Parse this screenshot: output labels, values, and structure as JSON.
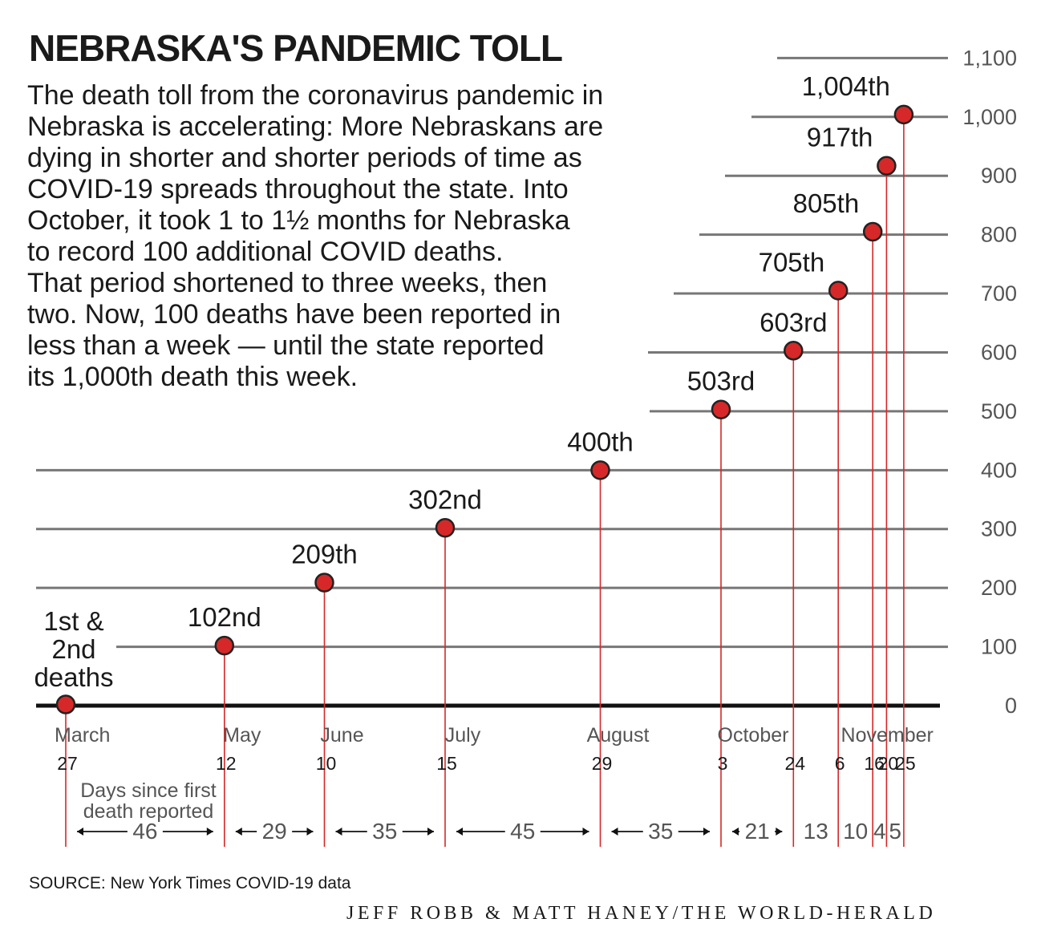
{
  "title": "NEBRASKA'S PANDEMIC TOLL",
  "intro_lines": [
    "The death toll from the coronavirus pandemic in",
    "Nebraska is accelerating: More Nebraskans are",
    "dying in shorter and shorter periods of time as",
    "COVID-19 spreads throughout the state. Into",
    "October, it took 1 to 1½ months for Nebraska",
    "to record 100 additional COVID deaths.",
    "That period shortened to three weeks, then",
    "two. Now, 100 deaths have been reported in",
    "less than a week — until the state reported",
    "its 1,000th death this week."
  ],
  "source": "SOURCE: New York Times COVID-19 data",
  "credit": "JEFF ROBB & MATT HANEY/THE WORLD-HERALD",
  "colors": {
    "point": "#d62828",
    "stem": "#d62828",
    "grid": "#777777",
    "axis": "#111111",
    "text": "#1a1a1a",
    "muted": "#555555"
  },
  "chart_data": {
    "type": "scatter",
    "title": "NEBRASKA'S PANDEMIC TOLL",
    "xlabel": "",
    "ylabel": "",
    "ylim": [
      0,
      1100
    ],
    "yticks": [
      0,
      100,
      200,
      300,
      400,
      500,
      600,
      700,
      800,
      900,
      1000,
      1100
    ],
    "ytick_labels": [
      "0",
      "100",
      "200",
      "300",
      "400",
      "500",
      "600",
      "700",
      "800",
      "900",
      "1,000",
      "1,100"
    ],
    "points": [
      {
        "date": "2020-03-27",
        "deaths": 2,
        "label_lines": [
          "1st &",
          "2nd",
          "deaths"
        ]
      },
      {
        "date": "2020-05-12",
        "deaths": 102,
        "label_lines": [
          "102nd"
        ]
      },
      {
        "date": "2020-06-10",
        "deaths": 209,
        "label_lines": [
          "209th"
        ]
      },
      {
        "date": "2020-07-15",
        "deaths": 302,
        "label_lines": [
          "302nd"
        ]
      },
      {
        "date": "2020-08-29",
        "deaths": 400,
        "label_lines": [
          "400th"
        ]
      },
      {
        "date": "2020-10-03",
        "deaths": 503,
        "label_lines": [
          "503rd"
        ]
      },
      {
        "date": "2020-10-24",
        "deaths": 603,
        "label_lines": [
          "603rd"
        ]
      },
      {
        "date": "2020-11-06",
        "deaths": 705,
        "label_lines": [
          "705th"
        ]
      },
      {
        "date": "2020-11-16",
        "deaths": 805,
        "label_lines": [
          "805th"
        ]
      },
      {
        "date": "2020-11-20",
        "deaths": 917,
        "label_lines": [
          "917th"
        ]
      },
      {
        "date": "2020-11-25",
        "deaths": 1004,
        "label_lines": [
          "1,004th"
        ]
      }
    ],
    "month_labels": [
      {
        "text": "March",
        "date": "2020-03-27"
      },
      {
        "text": "May",
        "date": "2020-05-12"
      },
      {
        "text": "June",
        "date": "2020-06-10"
      },
      {
        "text": "July",
        "date": "2020-07-15"
      },
      {
        "text": "August",
        "date": "2020-08-29"
      },
      {
        "text": "October",
        "date": "2020-10-03"
      },
      {
        "text": "November",
        "date": "2020-11-16"
      }
    ],
    "day_labels": [
      "27",
      "12",
      "10",
      "15",
      "29",
      "3",
      "24",
      "6",
      "16",
      "20",
      "25"
    ],
    "gaps_note": [
      "Days since first",
      "death reported"
    ],
    "gaps": [
      46,
      29,
      35,
      45,
      35,
      21,
      13,
      10,
      4,
      5
    ],
    "gap_arrows": [
      true,
      true,
      true,
      true,
      true,
      true,
      false,
      false,
      false,
      false
    ]
  }
}
